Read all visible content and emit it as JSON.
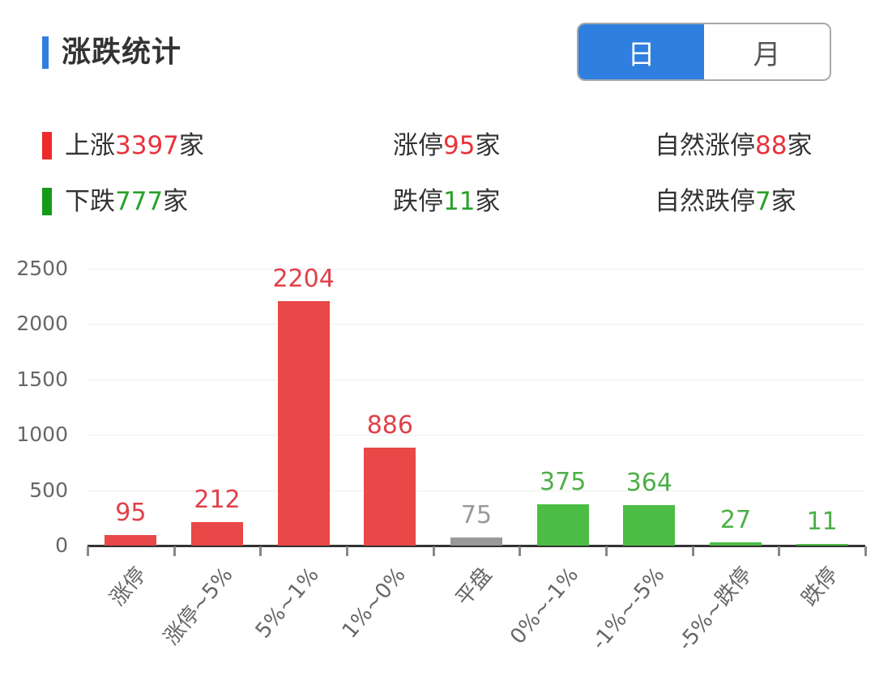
{
  "header": {
    "title": "涨跌统计",
    "accent_color": "#2f7fe0",
    "toggle": {
      "options": [
        "日",
        "月"
      ],
      "selected": "日"
    }
  },
  "stats": {
    "rise": {
      "label": "上涨",
      "value": "3397",
      "unit": "家",
      "color": "#e8333c"
    },
    "limit_up": {
      "label": "涨停",
      "value": "95",
      "unit": "家",
      "color": "#e8333c"
    },
    "natural_limit_up": {
      "label": "自然涨停",
      "value": "88",
      "unit": "家",
      "color": "#e8333c"
    },
    "fall": {
      "label": "下跌",
      "value": "777",
      "unit": "家",
      "color": "#2aa02a"
    },
    "limit_down": {
      "label": "跌停",
      "value": "11",
      "unit": "家",
      "color": "#2aa02a"
    },
    "natural_limit_down": {
      "label": "自然跌停",
      "value": "7",
      "unit": "家",
      "color": "#2aa02a"
    }
  },
  "chart_data": {
    "type": "bar",
    "title": "",
    "xlabel": "",
    "ylabel": "",
    "ylim": [
      0,
      2500
    ],
    "yticks": [
      0,
      500,
      1000,
      1500,
      2000,
      2500
    ],
    "ytick_labels": [
      "0",
      "500",
      "1000",
      "1500",
      "2000",
      "2500"
    ],
    "grid": true,
    "legend": null,
    "categories": [
      "涨停",
      "涨停~5%",
      "5%~1%",
      "1%~0%",
      "平盘",
      "0%~-1%",
      "-1%~-5%",
      "-5%~跌停",
      "跌停"
    ],
    "values": [
      95,
      212,
      2204,
      886,
      75,
      375,
      364,
      27,
      11
    ],
    "value_labels": [
      "95",
      "212",
      "2204",
      "886",
      "75",
      "375",
      "364",
      "27",
      "11"
    ],
    "colors": [
      "#e84848",
      "#e84848",
      "#e84848",
      "#e84848",
      "#999999",
      "#4cbd44",
      "#4cbd44",
      "#4cbd44",
      "#4cbd44"
    ],
    "label_colors": [
      "#e0404a",
      "#e0404a",
      "#e0404a",
      "#e0404a",
      "#999999",
      "#4caf47",
      "#4caf47",
      "#4caf47",
      "#4caf47"
    ]
  }
}
